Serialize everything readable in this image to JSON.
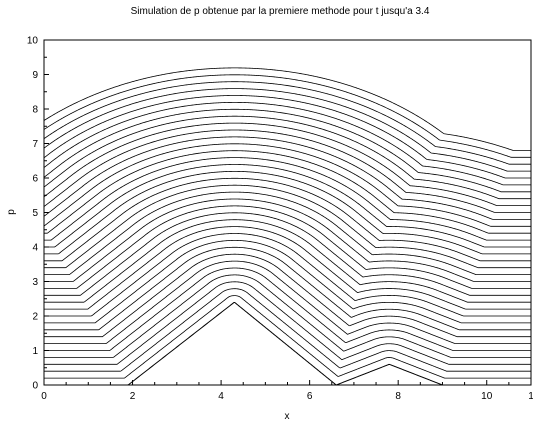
{
  "chart_data": {
    "type": "line",
    "title": "Simulation de p obtenue par la premiere methode pour t jusqu'a 3.4",
    "xlabel": "x",
    "ylabel": "p",
    "xlim": [
      0,
      11
    ],
    "ylim": [
      0,
      10
    ],
    "x_ticks": [
      "0",
      "2",
      "4",
      "6",
      "8",
      "10",
      "1"
    ],
    "y_ticks": [
      "0",
      "1",
      "2",
      "3",
      "4",
      "5",
      "6",
      "7",
      "8",
      "9",
      "10"
    ],
    "grid": false,
    "line_color": "#000000",
    "bottom_profile": {
      "x": [
        0,
        1.9,
        4.3,
        6.6,
        7.8,
        9.0,
        11
      ],
      "y": [
        0,
        0,
        2.4,
        0,
        0.6,
        0,
        0
      ]
    },
    "families": {
      "count": 34,
      "level_step": 0.2,
      "base_level": 0.2,
      "note_free": true
    }
  }
}
